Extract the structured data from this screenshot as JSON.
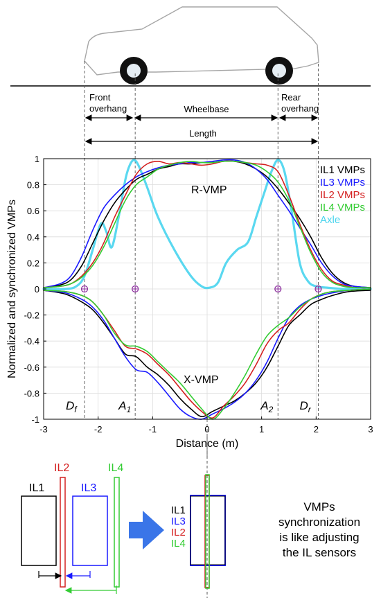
{
  "chart_data": {
    "type": "line",
    "xlabel": "Distance (m)",
    "ylabel": "Normalized and synchronized VMPs",
    "xlim": [
      -3,
      3
    ],
    "ylim": [
      -1,
      1
    ],
    "xticks": [
      "-3",
      "-2",
      "-1",
      "0",
      "1",
      "2",
      "3"
    ],
    "yticks": [
      "-1",
      "-0.8",
      "-0.6",
      "-0.4",
      "-0.2",
      "0",
      "0.2",
      "0.4",
      "0.6",
      "0.8",
      "1"
    ],
    "grid": true,
    "legend": {
      "placement": "top-right",
      "entries": [
        {
          "label": "IL1 VMPs",
          "color": "#000000"
        },
        {
          "label": "IL3 VMPs",
          "color": "#1a1aff"
        },
        {
          "label": "IL2 VMPs",
          "color": "#d42020"
        },
        {
          "label": "IL4 VMPs",
          "color": "#33cc33"
        },
        {
          "label": "Axle",
          "color": "#48d4ee"
        }
      ]
    },
    "curve_labels": {
      "upper": "R-VMP",
      "lower": "X-VMP"
    },
    "markers": [
      {
        "name": "D",
        "sub": "f",
        "x": -2.25
      },
      {
        "name": "A",
        "sub": "1",
        "x": -1.32
      },
      {
        "name": "A",
        "sub": "2",
        "x": 1.3
      },
      {
        "name": "D",
        "sub": "r",
        "x": 2.04
      }
    ],
    "series": [
      {
        "id": "r_vmp_il1",
        "color": "#000000",
        "x": [
          -3,
          -2.7,
          -2.5,
          -2.3,
          -2.1,
          -1.9,
          -1.7,
          -1.5,
          -1.3,
          -1.1,
          -0.9,
          -0.7,
          -0.5,
          -0.3,
          -0.1,
          0.1,
          0.3,
          0.5,
          0.7,
          0.9,
          1.1,
          1.3,
          1.5,
          1.7,
          1.9,
          2.1,
          2.3,
          2.5,
          2.7,
          3
        ],
        "y": [
          0.01,
          0.03,
          0.07,
          0.18,
          0.35,
          0.52,
          0.66,
          0.76,
          0.84,
          0.88,
          0.92,
          0.94,
          0.96,
          0.96,
          0.97,
          0.97,
          0.98,
          0.98,
          0.96,
          0.92,
          0.86,
          0.77,
          0.66,
          0.54,
          0.4,
          0.24,
          0.12,
          0.05,
          0.02,
          0.01
        ]
      },
      {
        "id": "r_vmp_il3",
        "color": "#1a1aff",
        "x": [
          -3,
          -2.7,
          -2.5,
          -2.3,
          -2.1,
          -1.9,
          -1.7,
          -1.5,
          -1.3,
          -1.1,
          -0.9,
          -0.7,
          -0.5,
          -0.3,
          -0.1,
          0.1,
          0.3,
          0.5,
          0.7,
          0.9,
          1.1,
          1.3,
          1.5,
          1.7,
          1.9,
          2.1,
          2.3,
          2.5,
          2.7,
          3
        ],
        "y": [
          0.01,
          0.04,
          0.1,
          0.25,
          0.45,
          0.62,
          0.72,
          0.8,
          0.86,
          0.9,
          0.93,
          0.95,
          0.96,
          0.97,
          0.97,
          0.98,
          0.99,
          0.99,
          0.97,
          0.92,
          0.84,
          0.72,
          0.6,
          0.47,
          0.34,
          0.2,
          0.1,
          0.04,
          0.02,
          0.01
        ]
      },
      {
        "id": "r_vmp_il2",
        "color": "#d42020",
        "x": [
          -3,
          -2.7,
          -2.5,
          -2.3,
          -2.1,
          -1.9,
          -1.7,
          -1.5,
          -1.3,
          -1.1,
          -0.9,
          -0.7,
          -0.5,
          -0.3,
          -0.1,
          0.1,
          0.3,
          0.5,
          0.7,
          0.9,
          1.1,
          1.3,
          1.5,
          1.7,
          1.9,
          2.1,
          2.3,
          2.5,
          2.7,
          3
        ],
        "y": [
          0.01,
          0.02,
          0.04,
          0.1,
          0.2,
          0.35,
          0.55,
          0.72,
          0.88,
          0.96,
          0.98,
          0.96,
          0.97,
          0.96,
          0.95,
          0.96,
          0.98,
          0.98,
          0.97,
          0.96,
          0.95,
          0.9,
          0.72,
          0.5,
          0.3,
          0.15,
          0.06,
          0.03,
          0.01,
          0.01
        ]
      },
      {
        "id": "r_vmp_il4",
        "color": "#33cc33",
        "x": [
          -3,
          -2.7,
          -2.5,
          -2.3,
          -2.1,
          -1.9,
          -1.7,
          -1.5,
          -1.3,
          -1.1,
          -0.9,
          -0.7,
          -0.5,
          -0.3,
          -0.1,
          0.1,
          0.3,
          0.5,
          0.7,
          0.9,
          1.1,
          1.3,
          1.5,
          1.7,
          1.9,
          2.1,
          2.3,
          2.5,
          2.7,
          3
        ],
        "y": [
          0.01,
          0.02,
          0.04,
          0.09,
          0.18,
          0.32,
          0.5,
          0.68,
          0.8,
          0.86,
          0.92,
          0.95,
          0.97,
          0.98,
          0.97,
          0.97,
          0.98,
          0.98,
          0.97,
          0.95,
          0.9,
          0.82,
          0.68,
          0.48,
          0.28,
          0.13,
          0.05,
          0.02,
          0.01,
          0.01
        ]
      },
      {
        "id": "axle",
        "color": "#48d4ee",
        "x": [
          -3,
          -2.6,
          -2.4,
          -2.25,
          -2.1,
          -1.95,
          -1.85,
          -1.75,
          -1.62,
          -1.5,
          -1.42,
          -1.34,
          -1.25,
          -1.1,
          -0.9,
          -0.6,
          -0.3,
          -0.1,
          0.05,
          0.2,
          0.35,
          0.55,
          0.75,
          0.9,
          1.05,
          1.18,
          1.3,
          1.42,
          1.55,
          1.7,
          1.85,
          2.0,
          2.2,
          2.5,
          3
        ],
        "y": [
          0.0,
          0.0,
          0.02,
          0.1,
          0.3,
          0.5,
          0.44,
          0.32,
          0.56,
          0.84,
          0.95,
          0.99,
          0.94,
          0.78,
          0.55,
          0.3,
          0.1,
          0.02,
          0.01,
          0.05,
          0.2,
          0.3,
          0.36,
          0.55,
          0.74,
          0.9,
          0.99,
          0.9,
          0.6,
          0.2,
          0.06,
          0.02,
          0.01,
          0.0,
          0.0
        ]
      },
      {
        "id": "x_vmp_il1",
        "color": "#000000",
        "x": [
          -3,
          -2.6,
          -2.3,
          -2.1,
          -1.9,
          -1.7,
          -1.5,
          -1.3,
          -1.1,
          -0.9,
          -0.7,
          -0.5,
          -0.3,
          -0.1,
          0.1,
          0.3,
          0.5,
          0.7,
          0.9,
          1.1,
          1.3,
          1.5,
          1.7,
          1.9,
          2.1,
          2.3,
          2.6,
          3
        ],
        "y": [
          -0.01,
          -0.04,
          -0.1,
          -0.16,
          -0.26,
          -0.38,
          -0.5,
          -0.52,
          -0.6,
          -0.66,
          -0.74,
          -0.84,
          -0.92,
          -0.98,
          -0.94,
          -0.9,
          -0.86,
          -0.8,
          -0.72,
          -0.6,
          -0.44,
          -0.28,
          -0.2,
          -0.12,
          -0.08,
          -0.05,
          -0.02,
          -0.01
        ]
      },
      {
        "id": "x_vmp_il3",
        "color": "#1a1aff",
        "x": [
          -3,
          -2.6,
          -2.3,
          -2.1,
          -1.9,
          -1.7,
          -1.5,
          -1.3,
          -1.1,
          -0.9,
          -0.7,
          -0.5,
          -0.3,
          -0.1,
          0.1,
          0.3,
          0.5,
          0.7,
          0.9,
          1.1,
          1.3,
          1.5,
          1.7,
          1.9,
          2.1,
          2.3,
          2.6,
          3
        ],
        "y": [
          -0.01,
          -0.03,
          -0.08,
          -0.14,
          -0.24,
          -0.38,
          -0.52,
          -0.62,
          -0.64,
          -0.72,
          -0.82,
          -0.92,
          -0.98,
          -1.0,
          -0.96,
          -0.92,
          -0.87,
          -0.8,
          -0.7,
          -0.56,
          -0.38,
          -0.22,
          -0.13,
          -0.08,
          -0.05,
          -0.03,
          -0.01,
          0.0
        ]
      },
      {
        "id": "x_vmp_il2",
        "color": "#d42020",
        "x": [
          -3,
          -2.6,
          -2.3,
          -2.1,
          -1.9,
          -1.7,
          -1.5,
          -1.3,
          -1.1,
          -0.9,
          -0.7,
          -0.5,
          -0.3,
          -0.1,
          0.1,
          0.3,
          0.5,
          0.7,
          0.9,
          1.1,
          1.3,
          1.5,
          1.7,
          1.9,
          2.1,
          2.3,
          2.6,
          3
        ],
        "y": [
          -0.01,
          -0.02,
          -0.05,
          -0.1,
          -0.2,
          -0.32,
          -0.44,
          -0.46,
          -0.5,
          -0.58,
          -0.66,
          -0.76,
          -0.86,
          -0.94,
          -0.99,
          -0.9,
          -0.82,
          -0.72,
          -0.58,
          -0.42,
          -0.32,
          -0.26,
          -0.16,
          -0.08,
          -0.04,
          -0.02,
          -0.01,
          0.0
        ]
      },
      {
        "id": "x_vmp_il4",
        "color": "#33cc33",
        "x": [
          -3,
          -2.6,
          -2.3,
          -2.1,
          -1.9,
          -1.7,
          -1.5,
          -1.3,
          -1.1,
          -0.9,
          -0.7,
          -0.5,
          -0.3,
          -0.1,
          0.1,
          0.3,
          0.5,
          0.7,
          0.9,
          1.1,
          1.3,
          1.5,
          1.7,
          1.9,
          2.1,
          2.3,
          2.6,
          3
        ],
        "y": [
          -0.01,
          -0.02,
          -0.05,
          -0.1,
          -0.2,
          -0.34,
          -0.43,
          -0.44,
          -0.48,
          -0.56,
          -0.64,
          -0.72,
          -0.82,
          -0.92,
          -1.0,
          -0.92,
          -0.8,
          -0.66,
          -0.5,
          -0.36,
          -0.28,
          -0.22,
          -0.14,
          -0.08,
          -0.04,
          -0.02,
          -0.01,
          0.0
        ]
      }
    ]
  },
  "vehicle": {
    "front_overhang": [
      "Front",
      "overhang"
    ],
    "wheelbase": "Wheelbase",
    "rear_overhang": [
      "Rear",
      "overhang"
    ],
    "length": "Length"
  },
  "sensors": {
    "il1": "IL1",
    "il2": "IL2",
    "il3": "IL3",
    "il4": "IL4",
    "stack": [
      "IL1",
      "IL3",
      "IL2",
      "IL4"
    ],
    "colors": {
      "il1": "#000000",
      "il2": "#d42020",
      "il3": "#1a1aff",
      "il4": "#33cc33",
      "arrow": "#3a75e8"
    },
    "note": [
      "VMPs",
      "synchronization",
      "is like adjusting",
      "the IL sensors"
    ]
  }
}
